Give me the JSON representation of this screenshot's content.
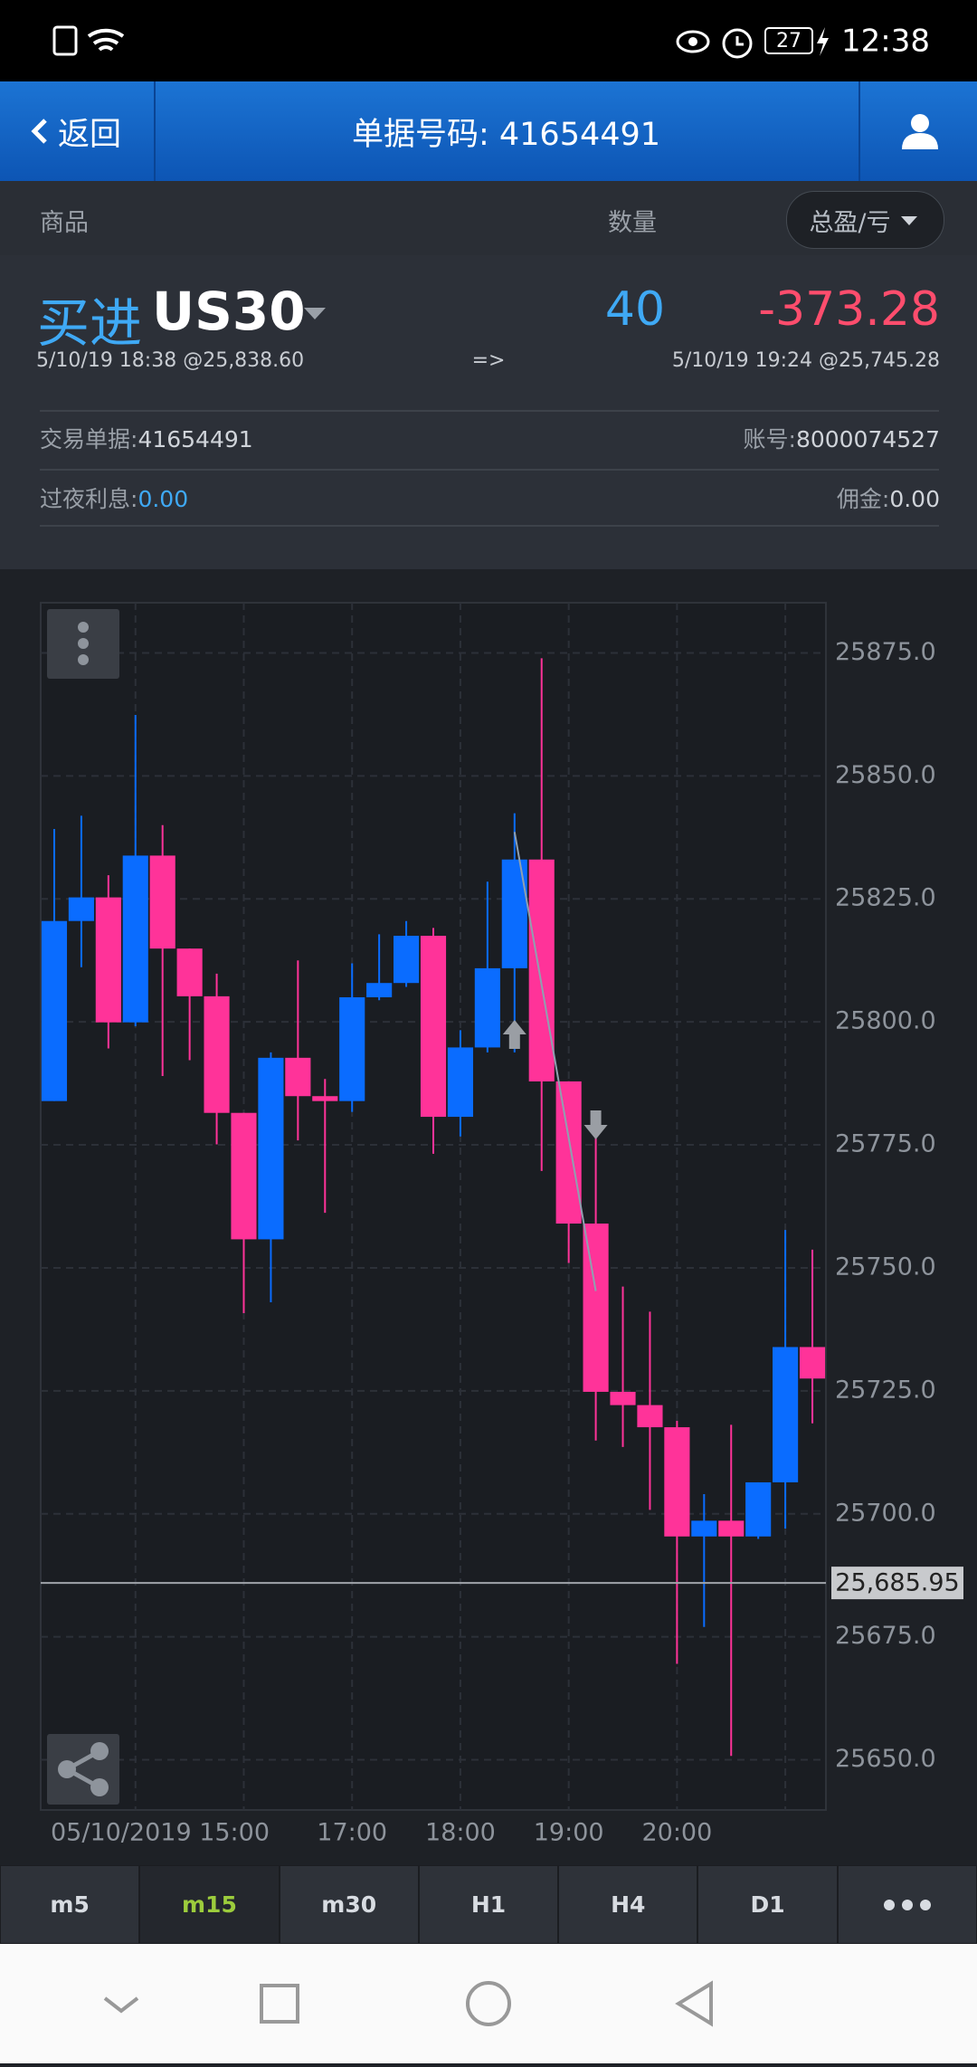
{
  "status_bar": {
    "battery": "27",
    "time": "12:38"
  },
  "header": {
    "back": "返回",
    "title": "单据号码: 41654491"
  },
  "columns": {
    "product": "商品",
    "quantity": "数量",
    "pnl": "总盈/亏"
  },
  "trade": {
    "side": "买进",
    "symbol": "US30",
    "quantity": "40",
    "pnl": "-373.28",
    "open": "5/10/19 18:38 @25,838.60",
    "arrow": "=>",
    "close": "5/10/19 19:24 @25,745.28",
    "ticket_label": "交易单据:",
    "ticket": "41654491",
    "account_label": "账号:",
    "account": "8000074527",
    "swap_label": "过夜利息:",
    "swap": "0.00",
    "commission_label": "佣金:",
    "commission": "0.00"
  },
  "chart_data": {
    "type": "candlestick",
    "categories": [
      null,
      null,
      null,
      "05/10/2019 15:00",
      null,
      null,
      null,
      null,
      null,
      null,
      null,
      "17:00",
      null,
      null,
      null,
      "18:00",
      null,
      null,
      null,
      "19:00",
      null,
      null,
      null,
      "20:00",
      null,
      null,
      null,
      null,
      null
    ],
    "open": [
      25783.9,
      25820.5,
      25825.3,
      25799.9,
      25833.8,
      25814.9,
      25805.2,
      25781.5,
      25755.8,
      25792.7,
      25784.9,
      25783.9,
      25805.0,
      25807.9,
      25817.5,
      25780.7,
      25794.8,
      25810.9,
      25833.0,
      25787.9,
      25759.0,
      25724.8,
      25722.1,
      25717.6,
      25695.4,
      25698.6,
      25695.4,
      25706.4,
      25733.9
    ],
    "high": [
      25839.2,
      25841.9,
      25829.8,
      25862.4,
      25840.0,
      25814.9,
      25809.8,
      25781.5,
      25793.8,
      25812.5,
      25788.4,
      25811.9,
      25817.8,
      25820.5,
      25819.1,
      25798.3,
      25828.5,
      25842.4,
      25873.9,
      25787.9,
      25777.7,
      25746.2,
      25741.1,
      25718.9,
      25704.0,
      25718.1,
      25706.4,
      25757.7,
      25753.7
    ],
    "low": [
      25783.9,
      25811.1,
      25794.6,
      25799.1,
      25789.0,
      25792.2,
      25775.1,
      25740.8,
      25743.0,
      25775.9,
      25761.2,
      25781.7,
      25804.4,
      25807.1,
      25773.2,
      25776.7,
      25793.8,
      25793.8,
      25769.7,
      25751.0,
      25714.9,
      25713.6,
      25700.8,
      25669.5,
      25677.0,
      25650.8,
      25694.9,
      25697.0,
      25718.4
    ],
    "close": [
      25820.5,
      25825.3,
      25799.9,
      25833.8,
      25814.9,
      25805.2,
      25781.5,
      25755.8,
      25792.7,
      25784.9,
      25783.9,
      25805.0,
      25807.9,
      25817.5,
      25780.7,
      25794.8,
      25810.9,
      25833.0,
      25787.9,
      25759.0,
      25724.8,
      25722.1,
      25717.6,
      25695.4,
      25698.6,
      25695.4,
      25706.4,
      25733.9,
      25727.5
    ],
    "up_color": "#0a6cff",
    "down_color": "#ff3399",
    "ylim": [
      25639.8,
      25885.2
    ],
    "yticks": [
      {
        "value": 25650,
        "label": "25650.0"
      },
      {
        "value": 25675,
        "label": "25675.0"
      },
      {
        "value": 25700,
        "label": "25700.0"
      },
      {
        "value": 25725,
        "label": "25725.0"
      },
      {
        "value": 25750,
        "label": "25750.0"
      },
      {
        "value": 25775,
        "label": "25775.0"
      },
      {
        "value": 25800,
        "label": "25800.0"
      },
      {
        "value": 25825,
        "label": "25825.0"
      },
      {
        "value": 25850,
        "label": "25850.0"
      },
      {
        "value": 25875,
        "label": "25875.0"
      }
    ],
    "grid": true,
    "current_price": {
      "value": 25685.95,
      "label": "25,685.95"
    },
    "trade_line": [
      25838.6,
      25745.28
    ]
  },
  "timeframes": [
    "m5",
    "m15",
    "m30",
    "H1",
    "H4",
    "D1"
  ],
  "active_timeframe": 1
}
